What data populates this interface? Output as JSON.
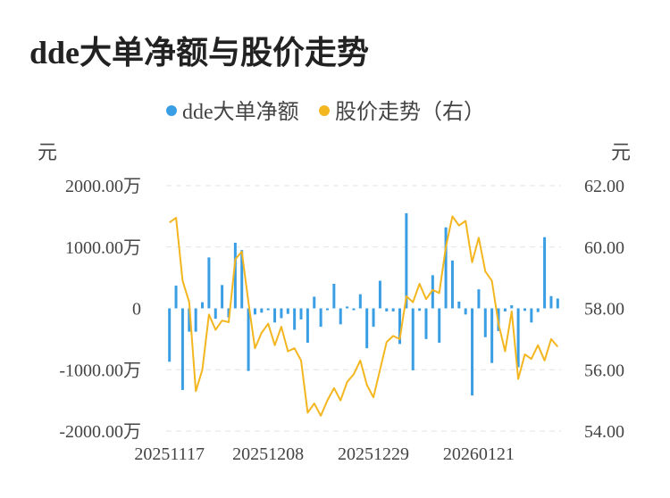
{
  "page": {
    "title": "dde大单净额与股价走势"
  },
  "chart_data": {
    "type": "bar+line",
    "legend": [
      {
        "name": "dde大单净额",
        "color": "#3a9ee4"
      },
      {
        "name": "股价走势（右）",
        "color": "#f3b61f"
      }
    ],
    "left_axis": {
      "unit": "元",
      "ticks": [
        "2000.00万",
        "1000.00万",
        "0",
        "-1000.00万",
        "-2000.00万"
      ],
      "range": [
        -2000,
        2000
      ]
    },
    "right_axis": {
      "unit": "元",
      "ticks": [
        "62.00",
        "60.00",
        "58.00",
        "56.00",
        "54.00"
      ],
      "range": [
        54,
        62
      ]
    },
    "x_tick_labels": [
      "20251117",
      "20251208",
      "20251229",
      "20260121"
    ],
    "grid": true,
    "series": [
      {
        "name": "dde大单净额",
        "type": "bar",
        "unit": "万元",
        "values": [
          -870,
          370,
          -1330,
          -380,
          -380,
          100,
          830,
          -170,
          380,
          -150,
          1070,
          950,
          -1020,
          -100,
          -70,
          -30,
          -230,
          -160,
          -90,
          -350,
          -180,
          -560,
          190,
          -300,
          -30,
          400,
          -260,
          30,
          -30,
          230,
          -650,
          -300,
          450,
          -50,
          -50,
          -580,
          1550,
          -1010,
          -40,
          -500,
          540,
          -560,
          1320,
          780,
          110,
          -100,
          -1420,
          310,
          -470,
          -890,
          -370,
          -50,
          50,
          -960,
          -40,
          -230,
          -60,
          1160,
          200,
          160
        ]
      },
      {
        "name": "股价走势（右）",
        "type": "line",
        "unit": "元",
        "values": [
          60.8,
          60.95,
          58.9,
          58.2,
          55.3,
          56.0,
          57.8,
          57.3,
          57.6,
          57.55,
          59.6,
          59.85,
          58.2,
          56.7,
          57.2,
          57.5,
          56.8,
          57.4,
          56.6,
          56.7,
          56.3,
          54.6,
          54.9,
          54.5,
          55.0,
          55.4,
          55.0,
          55.6,
          55.85,
          56.3,
          55.5,
          55.1,
          56.0,
          56.9,
          57.1,
          57.0,
          58.4,
          58.2,
          58.8,
          58.3,
          58.6,
          58.5,
          60.0,
          61.0,
          60.7,
          60.85,
          59.5,
          60.3,
          59.2,
          58.9,
          57.5,
          56.6,
          57.9,
          55.7,
          56.5,
          56.35,
          56.8,
          56.3,
          57.0,
          56.75
        ]
      }
    ]
  }
}
